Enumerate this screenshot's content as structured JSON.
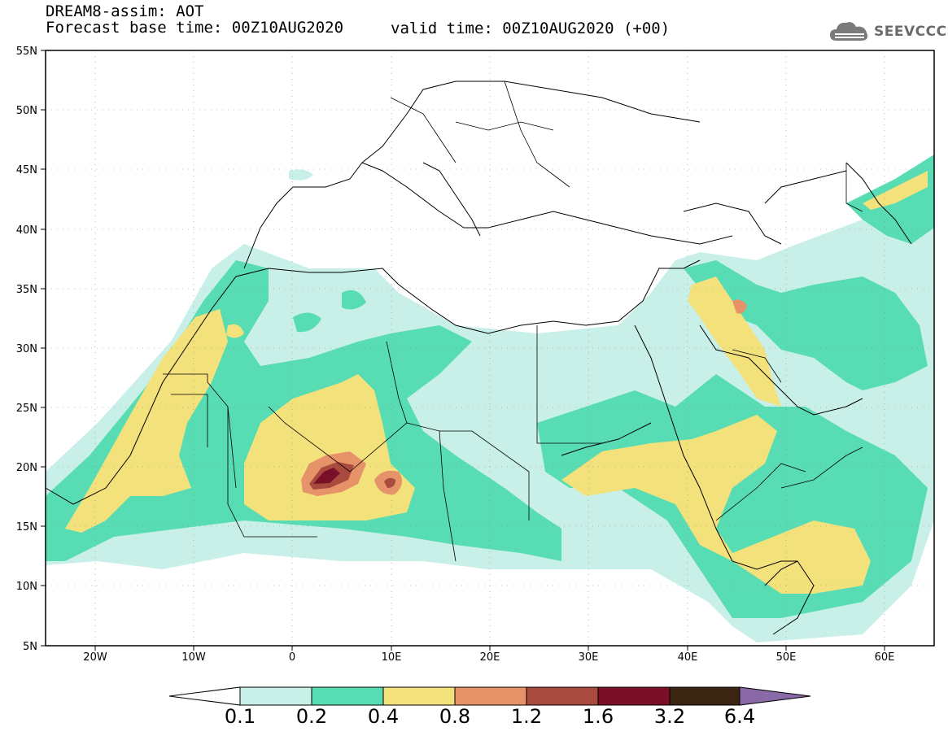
{
  "title": {
    "line1": "DREAM8-assim: AOT",
    "line2": "Forecast base time: 00Z10AUG2020",
    "valid": "valid time: 00Z10AUG2020 (+00)"
  },
  "logo": {
    "text": "SEEVCCC",
    "icon": "cloud-logo-icon"
  },
  "lat_labels": [
    "55N",
    "50N",
    "45N",
    "40N",
    "35N",
    "30N",
    "25N",
    "20N",
    "15N",
    "10N",
    "5N"
  ],
  "lon_labels": [
    "20W",
    "10W",
    "0",
    "10E",
    "20E",
    "30E",
    "40E",
    "50E",
    "60E"
  ],
  "map": {
    "lon_range": [
      -25,
      65
    ],
    "lat_range": [
      5,
      55
    ],
    "background": "#ffffff"
  },
  "colorbar": {
    "labels": [
      "0.1",
      "0.2",
      "0.4",
      "0.8",
      "1.2",
      "1.6",
      "3.2",
      "6.4"
    ],
    "colors": [
      "#ffffff",
      "#c8efe8",
      "#58dcb4",
      "#f3e17c",
      "#e7936a",
      "#a94a3e",
      "#7a0f28",
      "#3a2412",
      "#8a6aa6"
    ]
  }
}
